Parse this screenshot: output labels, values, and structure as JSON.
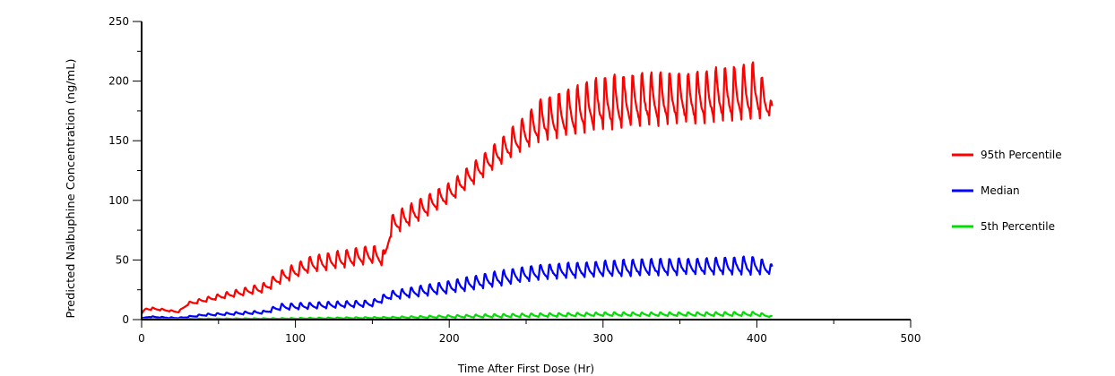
{
  "chart_data": {
    "type": "line",
    "title": "",
    "xlabel": "Time After First Dose (Hr)",
    "ylabel": "Predicted Nalbuphine Concentration (ng/mL)",
    "xlim": [
      0,
      500
    ],
    "ylim": [
      0,
      250
    ],
    "xticks": [
      0,
      100,
      200,
      300,
      400,
      500
    ],
    "yticks": [
      0,
      50,
      100,
      150,
      200,
      250
    ],
    "grid": false,
    "legend_position": "right",
    "dose_interval_hr": 6,
    "last_time_hr": 410,
    "series": [
      {
        "name": "95th Percentile",
        "color": "#ff0000",
        "envelope_x": [
          0,
          3,
          10,
          24,
          30,
          50,
          80,
          90,
          110,
          150,
          158,
          162,
          200,
          230,
          260,
          300,
          330,
          360,
          400,
          410
        ],
        "envelope_peak": [
          5,
          11,
          10,
          7,
          15,
          22,
          32,
          42,
          55,
          65,
          60,
          90,
          117,
          150,
          190,
          210,
          213,
          214,
          222,
          182
        ],
        "envelope_trough": [
          5,
          8,
          8,
          6,
          12,
          17,
          23,
          30,
          40,
          47,
          45,
          70,
          98,
          128,
          150,
          160,
          163,
          165,
          168,
          172
        ]
      },
      {
        "name": "Median",
        "color": "#0000ff",
        "envelope_x": [
          0,
          5,
          20,
          25,
          40,
          80,
          90,
          150,
          162,
          200,
          230,
          260,
          300,
          330,
          360,
          400,
          410
        ],
        "envelope_peak": [
          1,
          3,
          2,
          2,
          5,
          8,
          14,
          17,
          25,
          34,
          42,
          48,
          51,
          53,
          53,
          55,
          47
        ],
        "envelope_trough": [
          1,
          2,
          1,
          1,
          3,
          5,
          8,
          11,
          17,
          22,
          28,
          34,
          36,
          37,
          38,
          38,
          38
        ]
      },
      {
        "name": "5th Percentile",
        "color": "#00dd00",
        "envelope_x": [
          0,
          100,
          160,
          200,
          250,
          300,
          350,
          400,
          410
        ],
        "envelope_peak": [
          0.5,
          1.5,
          2.5,
          4,
          5.5,
          6.5,
          6.5,
          7,
          3
        ],
        "envelope_trough": [
          0.3,
          0.5,
          1,
          1.5,
          2,
          3,
          3,
          3,
          2
        ]
      }
    ]
  }
}
